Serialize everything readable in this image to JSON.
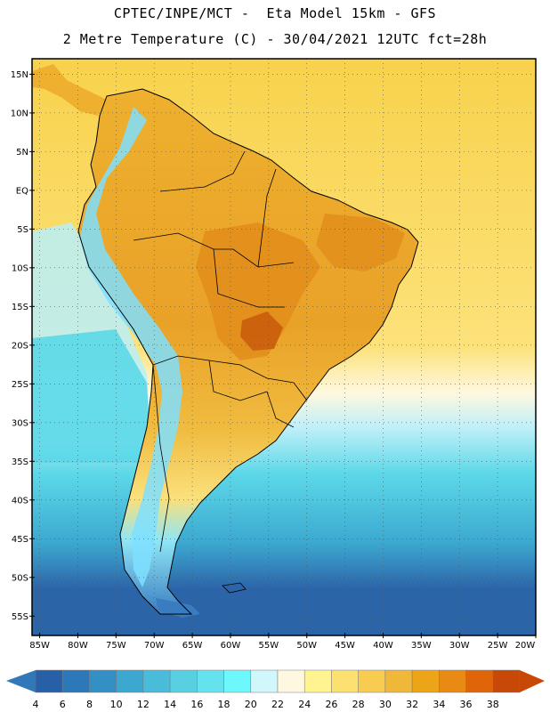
{
  "header": {
    "line1": "CPTEC/INPE/MCT -  Eta Model 15km - GFS",
    "line2": "2 Metre Temperature (C) - 30/04/2021 12UTC fct=28h"
  },
  "map": {
    "lat_labels": [
      "15N",
      "10N",
      "5N",
      "EQ",
      "5S",
      "10S",
      "15S",
      "20S",
      "25S",
      "30S",
      "35S",
      "40S",
      "45S",
      "50S",
      "55S"
    ],
    "lon_labels": [
      "85W",
      "80W",
      "75W",
      "70W",
      "65W",
      "60W",
      "55W",
      "50W",
      "45W",
      "40W",
      "35W",
      "30W",
      "25W",
      "20W"
    ],
    "colors": {
      "warm_sea": "#f8d24c",
      "warm_sea_light": "#fce27a",
      "land_warm": "#eeb02e",
      "land_hot": "#e08a18",
      "cool_sea": "#5cd8e8",
      "cold_sea": "#3ca8d0",
      "deep_sea": "#2c64a8",
      "andes": "#7fdfff"
    }
  },
  "legend": {
    "labels": [
      "4",
      "6",
      "8",
      "10",
      "12",
      "14",
      "16",
      "18",
      "20",
      "22",
      "24",
      "26",
      "28",
      "30",
      "32",
      "34",
      "36",
      "38"
    ],
    "colors": [
      "#2860a8",
      "#2c78b8",
      "#3490c4",
      "#3ca8d0",
      "#48bcd8",
      "#58d0e2",
      "#64e2ee",
      "#6cf8fc",
      "#d0f8fc",
      "#fff8e0",
      "#fff490",
      "#fce070",
      "#f8cc50",
      "#f0b838",
      "#eca418",
      "#e88a14",
      "#e06408",
      "#c84808"
    ],
    "left_arrow_color": "#3078b8",
    "right_arrow_color": "#c84808"
  }
}
